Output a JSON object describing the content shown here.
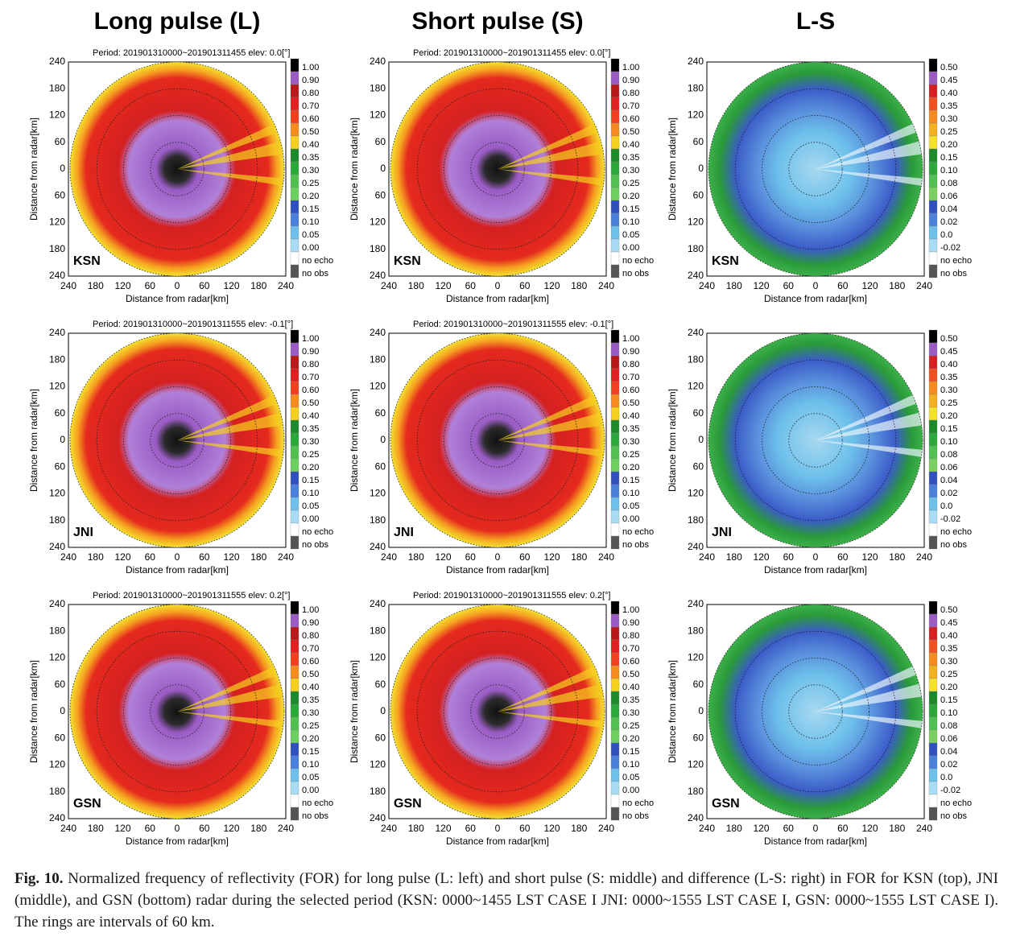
{
  "columns": [
    "Long pulse (L)",
    "Short pulse (S)",
    "L-S"
  ],
  "axis": {
    "ticks": [
      "240",
      "180",
      "120",
      "60",
      "0",
      "60",
      "120",
      "180",
      "240"
    ],
    "xlabel": "Distance from radar[km]",
    "ylabel": "Distance from radar[km]"
  },
  "colorbar_for": [
    "1.00",
    "0.90",
    "0.80",
    "0.70",
    "0.60",
    "0.50",
    "0.40",
    "0.35",
    "0.30",
    "0.25",
    "0.20",
    "0.15",
    "0.10",
    "0.05",
    "0.00",
    "no echo",
    "no obs"
  ],
  "colorbar_diff": [
    "0.50",
    "0.45",
    "0.40",
    "0.35",
    "0.30",
    "0.25",
    "0.20",
    "0.15",
    "0.10",
    "0.08",
    "0.06",
    "0.04",
    "0.02",
    "0.0",
    "-0.02",
    "no echo",
    "no obs"
  ],
  "panels": [
    {
      "header": "Period: 201901310000~201901311455 elev:  0.0[°]",
      "station": "KSN"
    },
    {
      "header": "Period: 201901310000~201901311455 elev:  0.0[°]",
      "station": "KSN"
    },
    {
      "station": "KSN"
    },
    {
      "header": "Period: 201901310000~201901311555 elev:  -0.1[°]",
      "station": "JNI"
    },
    {
      "header": "Period: 201901310000~201901311555 elev:  -0.1[°]",
      "station": "JNI"
    },
    {
      "station": "JNI"
    },
    {
      "header": "Period: 201901310000~201901311555 elev:  0.2[°]",
      "station": "GSN"
    },
    {
      "header": "Period: 201901310000~201901311555 elev:  0.2[°]",
      "station": "GSN"
    },
    {
      "station": "GSN"
    }
  ],
  "caption": {
    "label": "Fig. 10.",
    "text": " Normalized frequency of reflectivity (FOR) for long pulse (L: left) and short pulse (S: middle) and difference (L-S: right) in FOR for KSN (top), JNI (middle), and GSN (bottom) radar during the selected period (KSN: 0000~1455 LST CASE I JNI: 0000~1555 LST CASE I, GSN: 0000~1555 LST CASE I). The rings are intervals of 60 km."
  }
}
